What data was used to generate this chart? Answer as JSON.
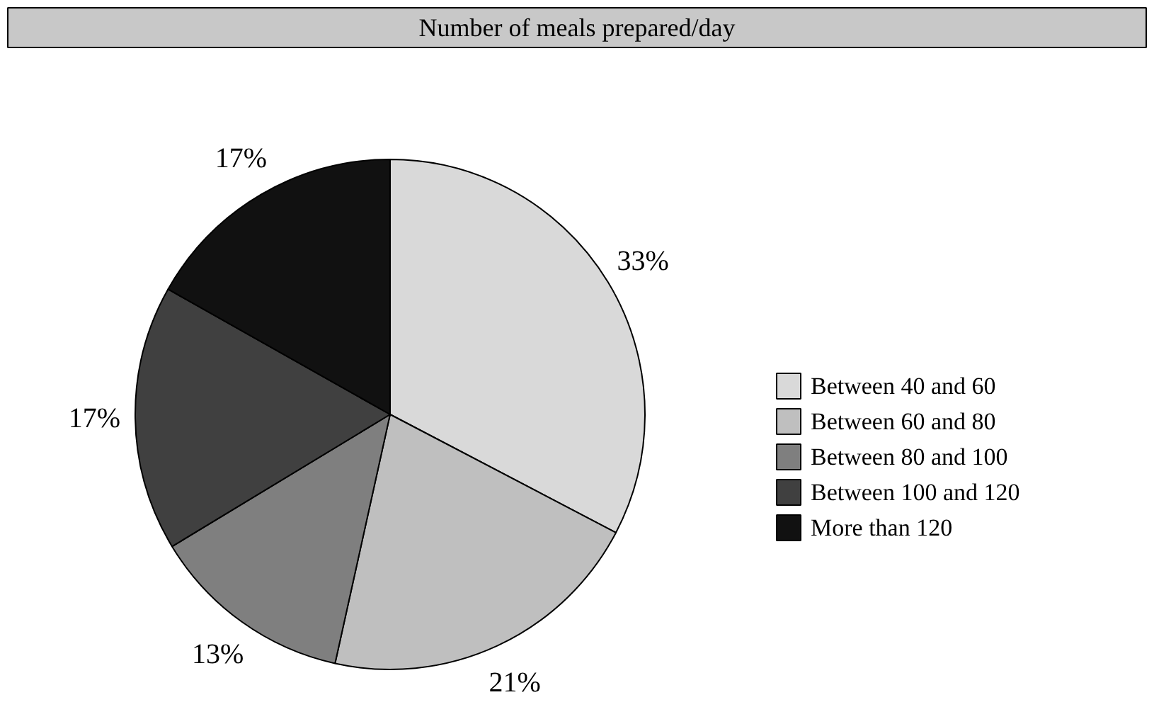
{
  "chart_data": {
    "type": "pie",
    "title": "Number of meals prepared/day",
    "categories": [
      "Between 40 and 60",
      "Between 60 and 80",
      "Between 80 and 100",
      "Between 100 and 120",
      "More than 120"
    ],
    "values": [
      33,
      21,
      13,
      17,
      17
    ],
    "colors": [
      "#d9d9d9",
      "#bfbfbf",
      "#7f7f7f",
      "#404040",
      "#111111"
    ],
    "value_labels": [
      "33%",
      "21%",
      "13%",
      "17%",
      "17%"
    ],
    "legend": "right"
  }
}
